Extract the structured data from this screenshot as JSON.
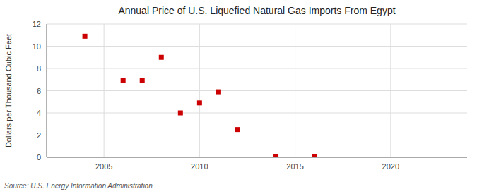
{
  "chart_data": {
    "type": "scatter",
    "title": "Annual Price of U.S. Liquefied Natural Gas Imports From Egypt",
    "y_label": "Dollars per Thousand Cubic Feet",
    "annotation": "Source: U.S. Energy Information Administration",
    "x": [
      2004,
      2006,
      2007,
      2008,
      2009,
      2010,
      2011,
      2012,
      2014,
      2016
    ],
    "values": [
      10.9,
      6.9,
      6.9,
      9.0,
      4.0,
      4.9,
      5.9,
      2.5,
      0.05,
      0.05
    ],
    "color": "#cc0000",
    "marker": "square",
    "xlim": [
      2002,
      2024
    ],
    "ylim": [
      0,
      12
    ],
    "xticks": [
      2005,
      2010,
      2015,
      2020
    ],
    "yticks": [
      0,
      2,
      4,
      6,
      8,
      10,
      12
    ],
    "grid": true
  }
}
